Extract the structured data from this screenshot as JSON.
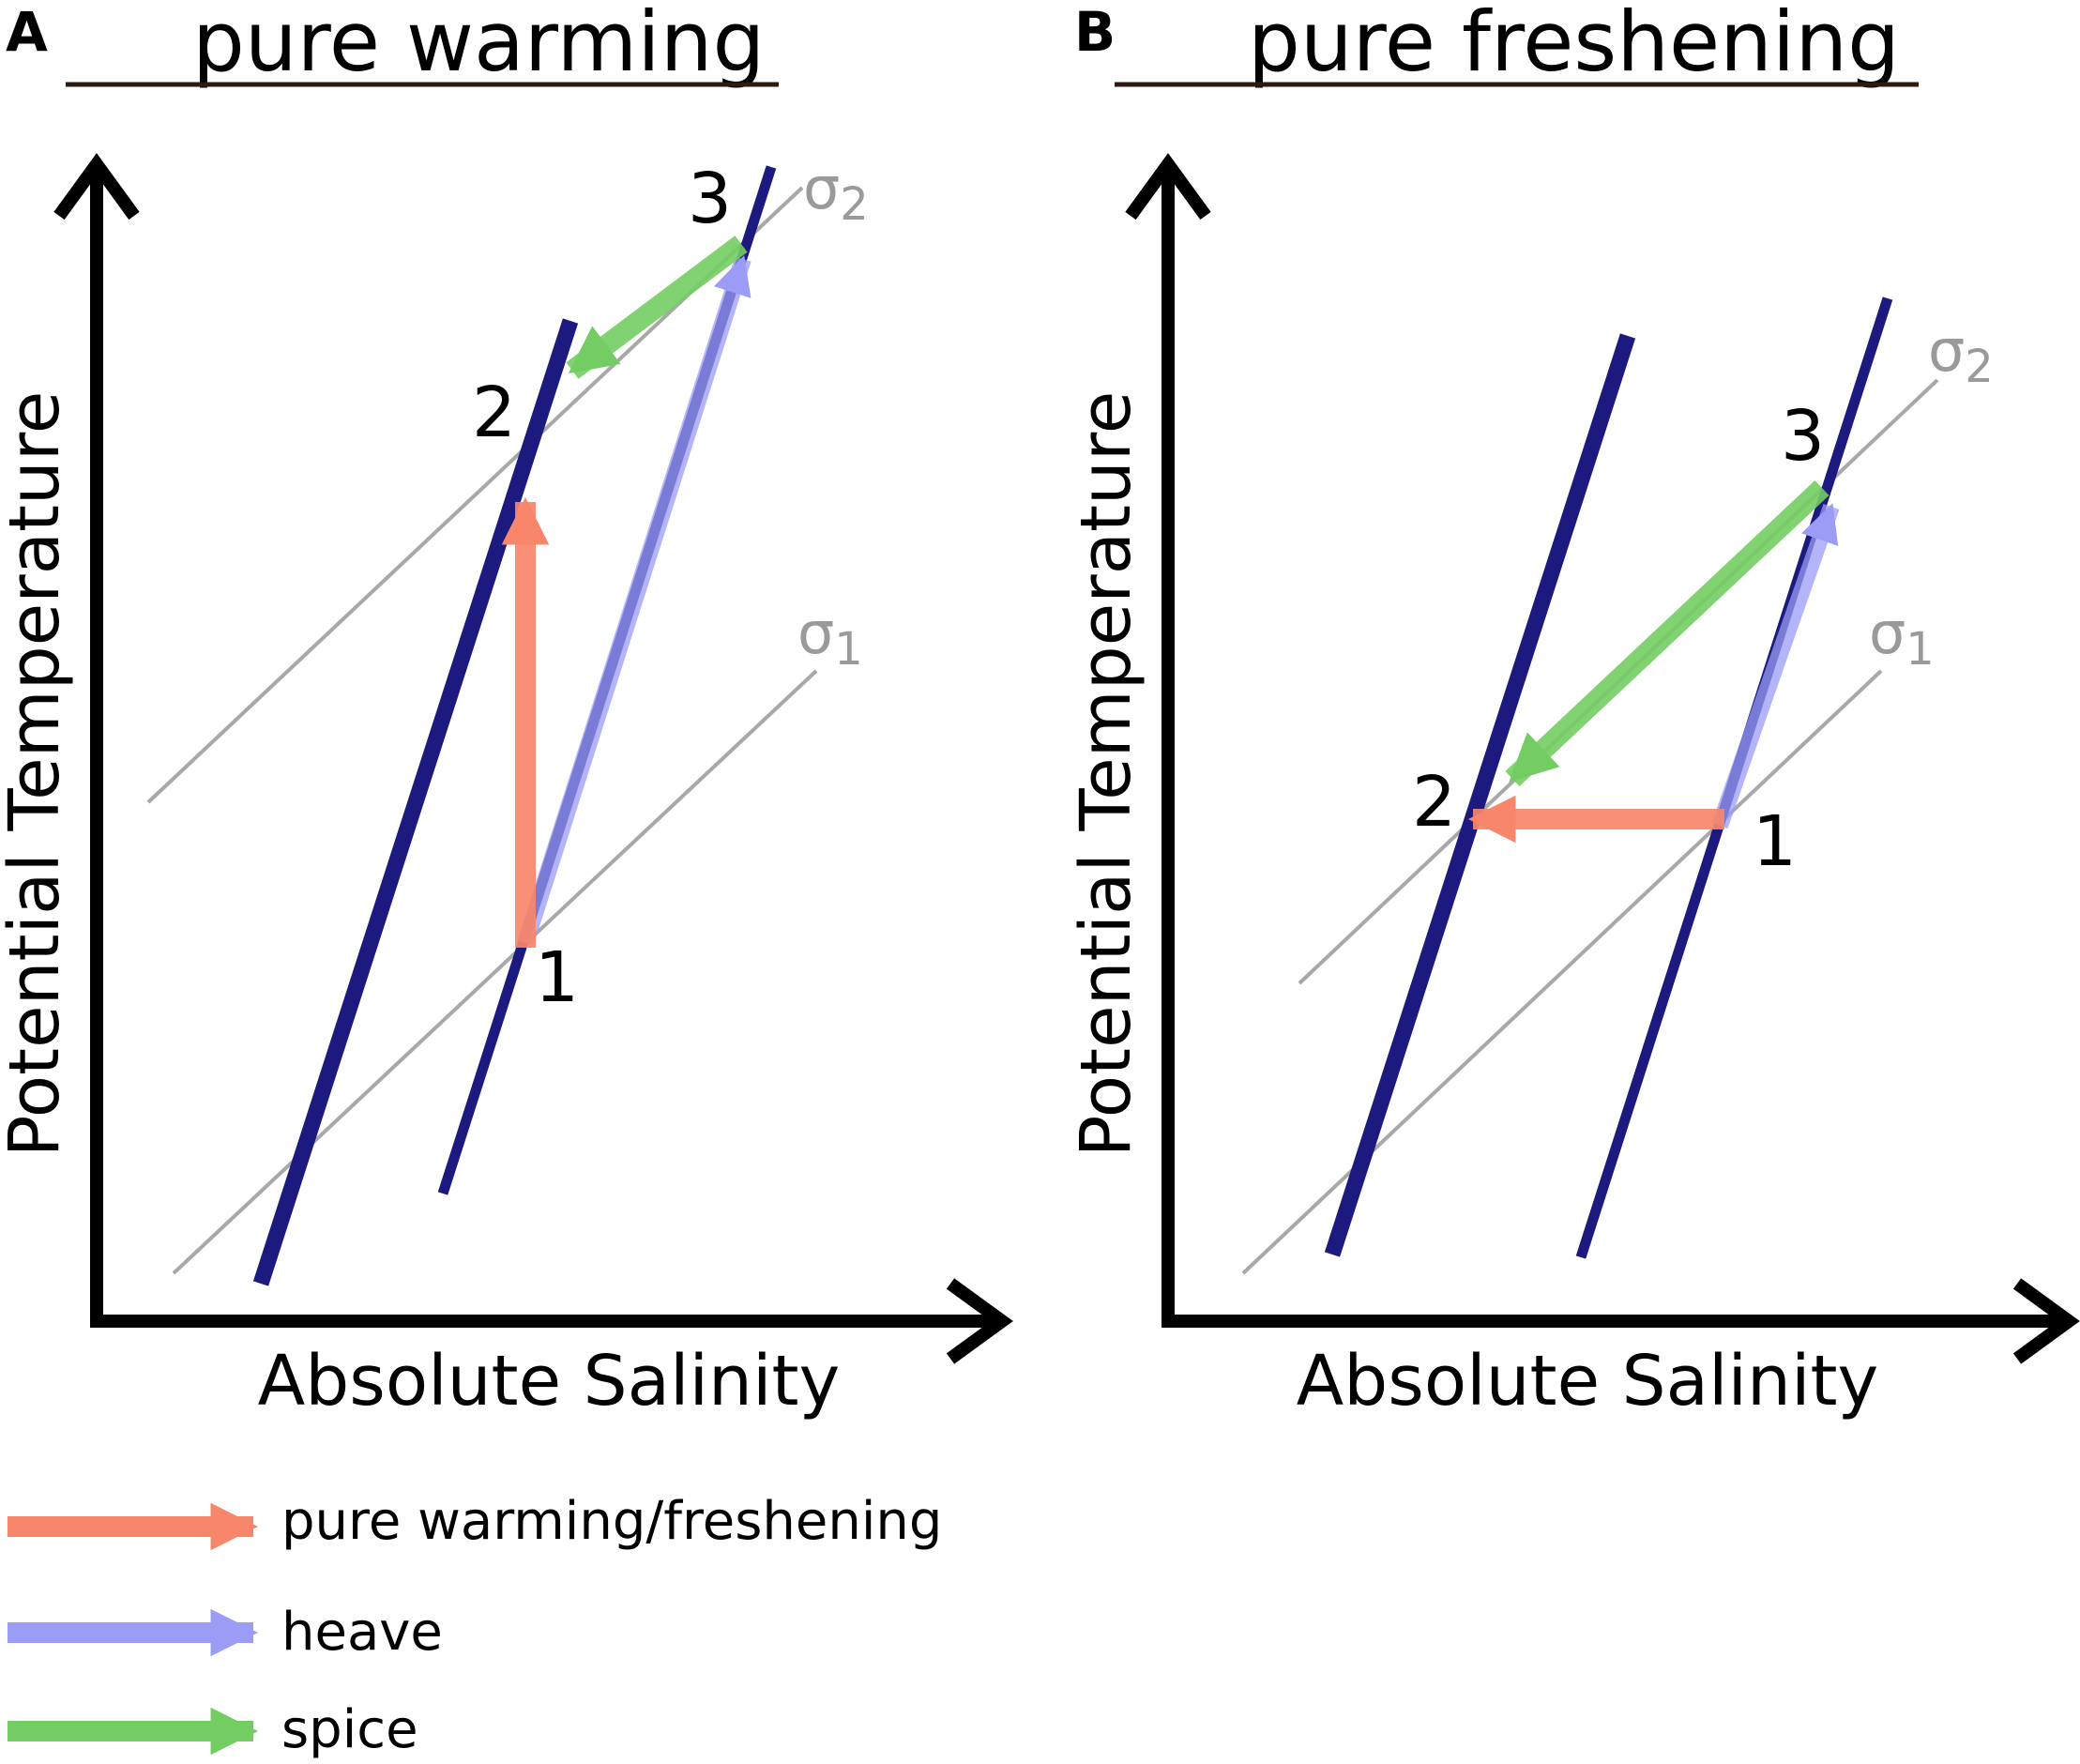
{
  "panels": [
    {
      "letter": "A",
      "title": "pure warming",
      "y_axis_label": "Potential Temperature",
      "x_axis_label": "Absolute Salinity",
      "isopycnal_labels": {
        "sigma_2": {
          "symbol": "σ",
          "subscript": "2"
        },
        "sigma_1": {
          "symbol": "σ",
          "subscript": "1"
        }
      },
      "points": {
        "p1": "1",
        "p2": "2",
        "p3": "3"
      }
    },
    {
      "letter": "B",
      "title": "pure freshening",
      "y_axis_label": "Potential Temperature",
      "x_axis_label": "Absolute Salinity",
      "isopycnal_labels": {
        "sigma_2": {
          "symbol": "σ",
          "subscript": "2"
        },
        "sigma_1": {
          "symbol": "σ",
          "subscript": "1"
        }
      },
      "points": {
        "p1": "1",
        "p2": "2",
        "p3": "3"
      }
    }
  ],
  "legend": [
    {
      "label": "pure warming/freshening",
      "color": "#f8866a"
    },
    {
      "label": "heave",
      "color": "#9a9cf6"
    },
    {
      "label": "spice",
      "color": "#73cd62"
    }
  ],
  "colors": {
    "axis": "#000000",
    "isopycnal": "#a8a8a8",
    "spiciness_line": "#1c1a7e",
    "title_underline": "#2b1a12"
  }
}
